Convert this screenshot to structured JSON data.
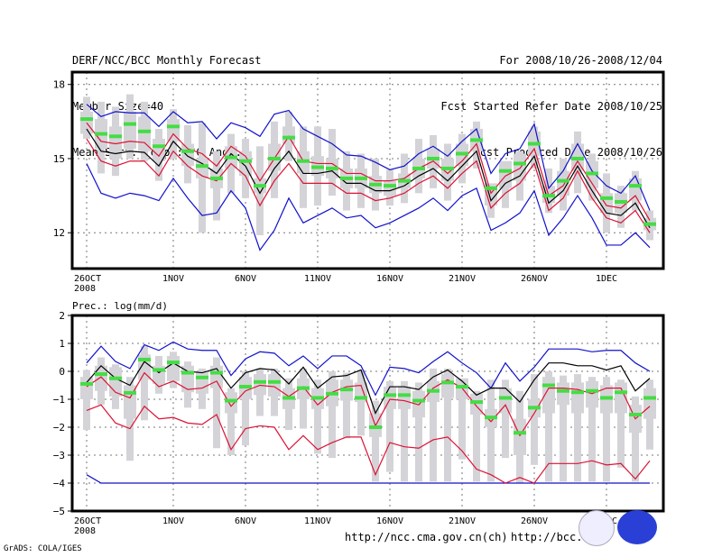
{
  "header": {
    "left": [
      "DERF/NCC/BCC Monthly Forecast",
      "Member Size=40",
      "Mean Surf. Temp.: °C Anom."
    ],
    "right": [
      "For 2008/10/26-2008/12/04",
      "Fcst Started Refer Date 2008/10/25",
      "Fcst Produced Date 2008/10/26"
    ]
  },
  "footer": {
    "grads": "GrADS: COLA/IGES",
    "url1": "http://ncc.cma.gov.cn(ch)",
    "url2": "http://bcc.",
    "logos": [
      "BCC",
      "NCC"
    ]
  },
  "colors": {
    "band": "#d4d4d8",
    "median": "#44dd44",
    "mean": "#000000",
    "inner": "#dd1133",
    "outer": "#1111cc"
  },
  "chart_data": [
    {
      "type": "line",
      "title": "Mean Surf. Temp.: °C Anom.",
      "xlabel": "",
      "ylabel": "",
      "x_ticks": [
        "26OCT\n2008",
        "1NOV",
        "6NOV",
        "11NOV",
        "16NOV",
        "21NOV",
        "26NOV",
        "1DEC"
      ],
      "x_tick_days": [
        0,
        6,
        11,
        16,
        21,
        26,
        31,
        36
      ],
      "days": 40,
      "ylim": [
        10.55,
        18.5
      ],
      "y_ticks": [
        12,
        15,
        18
      ],
      "grid": true,
      "series": [
        {
          "name": "ensemble mean",
          "values": [
            16.2,
            15.3,
            15.2,
            15.3,
            15.25,
            14.7,
            15.7,
            15.1,
            14.8,
            14.4,
            15.2,
            14.7,
            13.6,
            14.6,
            15.3,
            14.4,
            14.4,
            14.5,
            14.0,
            14.0,
            13.7,
            13.7,
            13.9,
            14.3,
            14.6,
            14.1,
            14.7,
            15.3,
            13.3,
            14.0,
            14.3,
            15.1,
            13.2,
            13.7,
            14.7,
            13.7,
            12.8,
            12.7,
            13.2,
            12.2
          ]
        },
        {
          "name": "upper inner",
          "values": [
            16.45,
            15.7,
            15.6,
            15.7,
            15.65,
            15.1,
            16.0,
            15.4,
            15.2,
            14.7,
            15.5,
            15.1,
            14.1,
            15.0,
            15.9,
            14.9,
            14.8,
            14.8,
            14.4,
            14.4,
            14.1,
            14.1,
            14.2,
            14.6,
            14.9,
            14.4,
            14.9,
            15.6,
            13.6,
            14.3,
            14.6,
            15.4,
            13.5,
            13.9,
            14.9,
            14.0,
            13.1,
            13.0,
            13.5,
            12.5
          ]
        },
        {
          "name": "lower inner",
          "values": [
            15.8,
            14.9,
            14.7,
            14.9,
            14.9,
            14.3,
            15.3,
            14.7,
            14.3,
            14.1,
            14.8,
            14.3,
            13.1,
            14.1,
            14.8,
            14.0,
            14.0,
            14.0,
            13.6,
            13.6,
            13.3,
            13.4,
            13.6,
            14.0,
            14.3,
            13.8,
            14.4,
            14.9,
            13.0,
            13.6,
            14.0,
            14.8,
            12.9,
            13.4,
            14.5,
            13.4,
            12.6,
            12.4,
            12.9,
            12.0
          ]
        },
        {
          "name": "upper outer",
          "values": [
            17.2,
            16.7,
            16.9,
            16.85,
            16.85,
            16.3,
            16.9,
            16.45,
            16.5,
            15.8,
            16.45,
            16.25,
            15.9,
            16.8,
            16.95,
            16.2,
            15.9,
            15.6,
            15.15,
            15.1,
            14.85,
            14.55,
            14.7,
            15.2,
            15.5,
            15.1,
            15.7,
            16.2,
            14.4,
            15.2,
            15.4,
            16.4,
            13.8,
            14.5,
            15.6,
            14.5,
            13.9,
            13.6,
            14.3,
            12.9
          ]
        },
        {
          "name": "lower outer",
          "values": [
            14.8,
            13.6,
            13.4,
            13.6,
            13.5,
            13.3,
            14.2,
            13.4,
            12.7,
            12.8,
            13.7,
            13.0,
            11.3,
            12.1,
            13.4,
            12.4,
            12.7,
            13.0,
            12.6,
            12.7,
            12.2,
            12.4,
            12.7,
            13.0,
            13.4,
            12.9,
            13.5,
            13.8,
            12.1,
            12.4,
            12.8,
            13.7,
            11.9,
            12.6,
            13.5,
            12.6,
            11.5,
            11.5,
            12.0,
            11.4
          ]
        },
        {
          "name": "member median",
          "values": [
            16.6,
            16.0,
            15.9,
            16.4,
            16.1,
            15.5,
            16.3,
            15.3,
            14.7,
            14.2,
            15.05,
            14.9,
            13.9,
            15.0,
            15.85,
            14.9,
            14.65,
            14.6,
            14.2,
            14.2,
            13.95,
            13.9,
            14.1,
            14.6,
            15.0,
            14.6,
            15.2,
            15.75,
            13.8,
            14.5,
            14.8,
            15.6,
            13.5,
            14.1,
            15.0,
            14.4,
            13.4,
            13.25,
            13.9,
            12.35
          ]
        },
        {
          "name": "band outer low",
          "values": [
            15.8,
            14.4,
            14.3,
            15.0,
            14.9,
            14.1,
            15.0,
            14.0,
            12.0,
            12.5,
            13.6,
            13.4,
            11.9,
            13.4,
            14.9,
            13.0,
            13.1,
            13.5,
            12.9,
            13.0,
            12.9,
            13.1,
            13.2,
            13.6,
            13.8,
            13.3,
            14.0,
            14.6,
            12.6,
            13.0,
            13.3,
            14.6,
            12.8,
            12.9,
            13.6,
            13.3,
            12.0,
            12.2,
            12.9,
            11.7
          ]
        },
        {
          "name": "band outer high",
          "values": [
            17.5,
            17.3,
            17.1,
            17.6,
            17.3,
            16.2,
            17.0,
            16.35,
            16.45,
            15.3,
            16.0,
            15.8,
            15.5,
            16.5,
            16.9,
            16.3,
            16.3,
            16.2,
            15.3,
            15.2,
            15.0,
            14.55,
            15.2,
            15.8,
            15.95,
            15.6,
            16.0,
            16.5,
            13.9,
            14.8,
            15.3,
            16.3,
            14.6,
            15.0,
            16.1,
            15.2,
            14.4,
            13.9,
            14.5,
            12.9
          ]
        },
        {
          "name": "band inner low",
          "values": [
            16.0,
            15.4,
            15.0,
            15.4,
            15.3,
            14.9,
            15.7,
            14.7,
            14.2,
            13.8,
            14.6,
            14.3,
            13.6,
            14.5,
            15.6,
            14.4,
            14.3,
            14.2,
            13.8,
            13.8,
            13.6,
            13.5,
            13.8,
            14.2,
            14.6,
            14.1,
            14.7,
            15.3,
            13.1,
            13.8,
            14.1,
            15.1,
            13.2,
            13.5,
            14.5,
            13.8,
            12.8,
            12.8,
            13.3,
            12.1
          ]
        },
        {
          "name": "band inner high",
          "values": [
            16.9,
            16.6,
            16.3,
            16.9,
            16.7,
            15.8,
            16.6,
            15.6,
            15.0,
            14.6,
            15.5,
            15.3,
            14.2,
            15.6,
            16.3,
            15.3,
            15.1,
            15.0,
            14.6,
            14.6,
            14.3,
            14.1,
            14.4,
            15.0,
            15.4,
            15.0,
            15.6,
            16.2,
            14.0,
            14.9,
            15.2,
            16.1,
            13.9,
            14.5,
            15.6,
            14.9,
            13.6,
            13.6,
            14.2,
            12.6
          ]
        }
      ]
    },
    {
      "type": "line",
      "title": "Prec.: log(mm/d)",
      "xlabel": "",
      "ylabel": "",
      "x_ticks": [
        "26OCT\n2008",
        "1NOV",
        "6NOV",
        "11NOV",
        "16NOV",
        "21NOV",
        "26NOV",
        "1DEC"
      ],
      "x_tick_days": [
        0,
        6,
        11,
        16,
        21,
        26,
        31,
        36
      ],
      "days": 40,
      "ylim": [
        -5,
        2
      ],
      "y_ticks": [
        -5,
        -4,
        -3,
        -2,
        -1,
        0,
        1,
        2
      ],
      "grid": true,
      "series": [
        {
          "name": "ensemble mean",
          "values": [
            -0.4,
            0.2,
            -0.25,
            -0.5,
            0.35,
            -0.05,
            0.3,
            0.0,
            -0.05,
            0.1,
            -0.6,
            -0.05,
            0.1,
            0.05,
            -0.45,
            0.15,
            -0.6,
            -0.2,
            -0.15,
            0.05,
            -1.5,
            -0.55,
            -0.55,
            -0.65,
            -0.2,
            0.05,
            -0.35,
            -0.85,
            -0.6,
            -0.6,
            -1.1,
            -0.3,
            0.3,
            0.3,
            0.2,
            0.2,
            0.05,
            0.2,
            -0.7,
            -0.25
          ]
        },
        {
          "name": "upper inner",
          "values": [
            -0.55,
            -0.2,
            -0.75,
            -0.95,
            -0.05,
            -0.55,
            -0.35,
            -0.65,
            -0.6,
            -0.35,
            -1.25,
            -0.7,
            -0.5,
            -0.55,
            -0.9,
            -0.55,
            -1.2,
            -0.75,
            -0.55,
            -0.5,
            -1.95,
            -1.0,
            -1.05,
            -1.2,
            -0.6,
            -0.3,
            -0.6,
            -1.25,
            -1.8,
            -1.2,
            -2.3,
            -1.5,
            -0.6,
            -0.6,
            -0.65,
            -0.8,
            -0.6,
            -0.6,
            -1.7,
            -1.25
          ]
        },
        {
          "name": "lower inner",
          "values": [
            -1.4,
            -1.2,
            -1.85,
            -2.05,
            -1.25,
            -1.7,
            -1.65,
            -1.85,
            -1.9,
            -1.55,
            -2.8,
            -2.05,
            -1.95,
            -2.0,
            -2.8,
            -2.3,
            -2.8,
            -2.55,
            -2.35,
            -2.35,
            -3.7,
            -2.55,
            -2.7,
            -2.75,
            -2.45,
            -2.35,
            -2.85,
            -3.5,
            -3.7,
            -4.0,
            -3.8,
            -4.0,
            -3.3,
            -3.3,
            -3.3,
            -3.2,
            -3.35,
            -3.3,
            -3.85,
            -3.2
          ]
        },
        {
          "name": "upper outer",
          "values": [
            0.3,
            0.9,
            0.35,
            0.1,
            0.95,
            0.75,
            1.05,
            0.8,
            0.75,
            0.75,
            -0.15,
            0.45,
            0.7,
            0.65,
            0.2,
            0.55,
            0.1,
            0.55,
            0.55,
            0.2,
            -0.85,
            0.15,
            0.1,
            -0.05,
            0.35,
            0.7,
            0.3,
            -0.05,
            -0.6,
            0.3,
            -0.35,
            0.15,
            0.8,
            0.8,
            0.8,
            0.7,
            0.75,
            0.75,
            0.3,
            0.0
          ]
        },
        {
          "name": "lower outer",
          "values": [
            -3.7,
            -4.0,
            -4.0,
            -4.0,
            -4.0,
            -4.0,
            -4.0,
            -4.0,
            -4.0,
            -4.0,
            -4.0,
            -4.0,
            -4.0,
            -4.0,
            -4.0,
            -4.0,
            -4.0,
            -4.0,
            -4.0,
            -4.0,
            -4.0,
            -4.0,
            -4.0,
            -4.0,
            -4.0,
            -4.0,
            -4.0,
            -4.0,
            -4.0,
            -4.0,
            -4.0,
            -4.0,
            -4.0,
            -4.0,
            -4.0,
            -4.0,
            -4.0,
            -4.0,
            -4.0,
            -4.0
          ]
        },
        {
          "name": "member median",
          "values": [
            -0.45,
            -0.1,
            -0.25,
            -0.77,
            0.42,
            0.05,
            0.32,
            -0.05,
            -0.22,
            -0.05,
            -1.05,
            -0.55,
            -0.38,
            -0.38,
            -0.95,
            -0.6,
            -0.95,
            -0.8,
            -0.65,
            -0.95,
            -2.0,
            -0.85,
            -0.85,
            -1.05,
            -0.7,
            -0.4,
            -0.55,
            -1.1,
            -1.65,
            -0.95,
            -2.2,
            -1.3,
            -0.5,
            -0.7,
            -0.75,
            -0.7,
            -0.95,
            -0.75,
            -1.55,
            -0.95
          ]
        },
        {
          "name": "band outer low",
          "values": [
            -2.1,
            -1.2,
            -1.35,
            -3.2,
            -1.75,
            -0.8,
            -0.6,
            -1.3,
            -1.35,
            -2.75,
            -3.0,
            -2.65,
            -1.6,
            -1.6,
            -2.1,
            -2.05,
            -2.95,
            -3.1,
            -2.4,
            -2.3,
            -3.95,
            -3.6,
            -3.95,
            -3.95,
            -3.95,
            -3.95,
            -3.15,
            -3.95,
            -3.95,
            -3.1,
            -4.0,
            -3.35,
            -3.95,
            -3.95,
            -3.95,
            -3.95,
            -3.95,
            -3.45,
            -3.95,
            -2.8
          ]
        },
        {
          "name": "band outer high",
          "values": [
            0.05,
            0.5,
            0.25,
            -0.2,
            0.9,
            0.55,
            0.7,
            0.35,
            0.1,
            0.5,
            -0.6,
            0.0,
            0.1,
            0.1,
            -0.25,
            0.1,
            -0.3,
            0.0,
            -0.05,
            0.05,
            -1.05,
            -0.35,
            -0.35,
            -0.4,
            0.1,
            0.1,
            -0.7,
            -0.7,
            -0.3,
            -0.3,
            -0.7,
            -0.1,
            0.0,
            -0.15,
            -0.1,
            -0.2,
            -0.2,
            -0.3,
            -0.9,
            -0.3
          ]
        },
        {
          "name": "band inner low",
          "values": [
            -1.0,
            -0.7,
            -0.9,
            -1.7,
            -0.3,
            -0.45,
            -0.35,
            -0.75,
            -0.8,
            -0.6,
            -1.5,
            -1.0,
            -0.85,
            -0.9,
            -1.35,
            -1.0,
            -1.35,
            -1.25,
            -1.05,
            -1.1,
            -2.35,
            -1.35,
            -1.35,
            -1.65,
            -1.1,
            -0.95,
            -1.0,
            -1.55,
            -2.0,
            -1.5,
            -3.0,
            -1.65,
            -1.5,
            -1.2,
            -1.5,
            -1.3,
            -1.5,
            -1.5,
            -2.2,
            -1.7
          ]
        },
        {
          "name": "band inner high",
          "values": [
            -0.2,
            0.2,
            0.15,
            -0.5,
            0.6,
            0.2,
            0.55,
            0.2,
            0.0,
            0.2,
            -0.75,
            -0.2,
            -0.1,
            -0.1,
            -0.6,
            -0.25,
            -0.6,
            -0.3,
            -0.3,
            -0.4,
            -1.5,
            -0.55,
            -0.55,
            -0.7,
            -0.35,
            -0.1,
            -0.25,
            -0.8,
            -1.35,
            -0.6,
            -1.7,
            -1.0,
            -0.2,
            -0.4,
            -0.4,
            -0.35,
            -0.5,
            -0.4,
            -1.2,
            -0.6
          ]
        }
      ]
    }
  ]
}
